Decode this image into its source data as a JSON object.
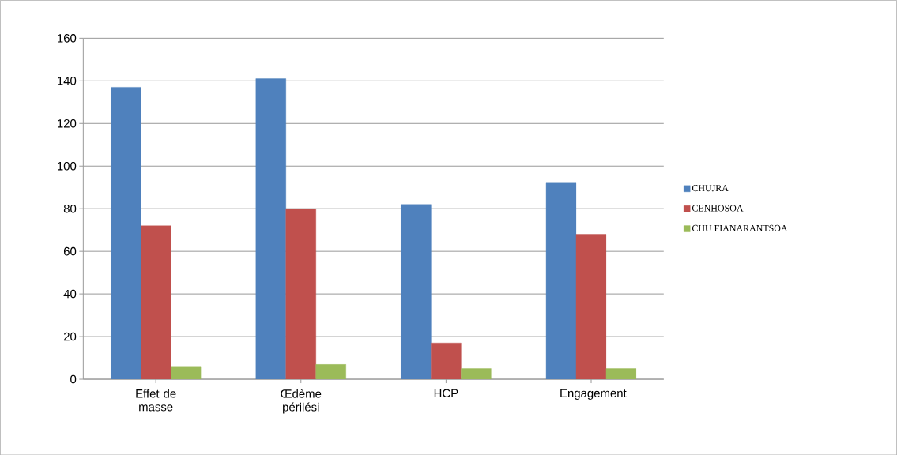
{
  "chart_data": {
    "type": "bar",
    "categories": [
      "Effet de masse",
      "Œdème périlési",
      "HCP",
      "Engagement"
    ],
    "series": [
      {
        "name": "CHUJRA",
        "color": "#4f81bd",
        "values": [
          137,
          141,
          82,
          92
        ]
      },
      {
        "name": "CENHOSOA",
        "color": "#c0504d",
        "values": [
          72,
          80,
          17,
          68
        ]
      },
      {
        "name": "CHU FIANARANTSOA",
        "color": "#9bbb59",
        "values": [
          6,
          7,
          5,
          5
        ]
      }
    ],
    "ylim": [
      0,
      160
    ],
    "yticks": [
      0,
      20,
      40,
      60,
      80,
      100,
      120,
      140,
      160
    ],
    "grid": "y",
    "legend": "right"
  }
}
